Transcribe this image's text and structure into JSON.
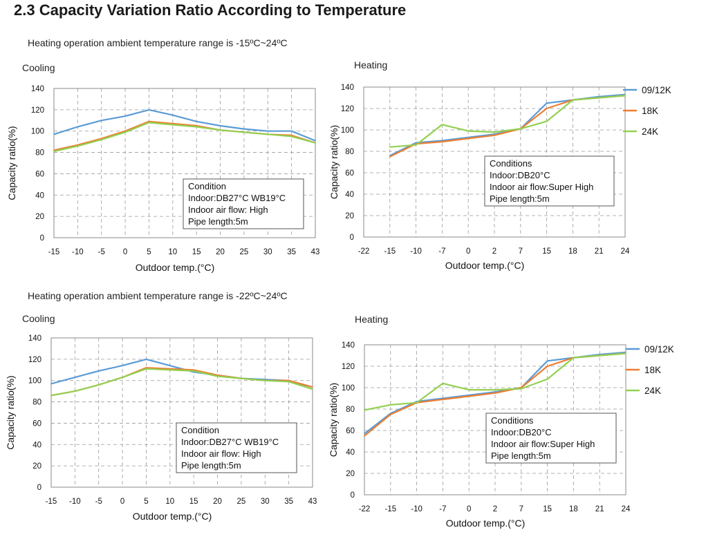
{
  "page": {
    "title": "2.3 Capacity Variation Ratio According to Temperature",
    "section1_range": "Heating operation ambient temperature range is -15ºC~24ºC",
    "section2_range": "Heating operation ambient temperature range is -22ºC~24ºC"
  },
  "colors": {
    "09/12K": "#5b9bd5",
    "18K": "#ed7d31",
    "24K": "#92d050"
  },
  "chart_data": [
    {
      "type": "line",
      "panel_label": "Cooling",
      "xlabel": "Outdoor temp.(°C)",
      "ylabel": "Capacity ratio(%)",
      "categories": [
        "-15",
        "-10",
        "-5",
        "0",
        "5",
        "10",
        "15",
        "20",
        "25",
        "30",
        "35",
        "43"
      ],
      "ylim": [
        0,
        140
      ],
      "yticks": [
        "0",
        "20",
        "40",
        "60",
        "80",
        "100",
        "120",
        "140"
      ],
      "grid": true,
      "series": [
        {
          "key": "09/12K",
          "values": [
            97,
            104,
            110,
            114,
            120,
            115,
            109,
            105,
            102,
            100,
            100,
            91
          ]
        },
        {
          "key": "18K",
          "values": [
            82,
            87,
            93,
            100,
            109,
            107,
            105,
            101,
            99,
            97,
            96,
            89
          ]
        },
        {
          "key": "24K",
          "values": [
            81,
            86,
            92,
            99,
            108,
            106,
            104,
            101,
            99,
            97,
            95,
            89
          ]
        }
      ],
      "conditions": [
        "Condition",
        "Indoor:DB27°C WB19°C",
        "Indoor air flow: High",
        "Pipe length:5m"
      ]
    },
    {
      "type": "line",
      "panel_label": "Heating",
      "xlabel": "Outdoor temp.(°C)",
      "ylabel": "Capacity ratio(%)",
      "categories": [
        "-22",
        "-15",
        "-10",
        "-7",
        "0",
        "2",
        "7",
        "15",
        "18",
        "21",
        "24"
      ],
      "ylim": [
        0,
        140
      ],
      "yticks": [
        "0",
        "20",
        "40",
        "60",
        "80",
        "100",
        "120",
        "140"
      ],
      "grid": true,
      "legend": [
        "09/12K",
        "18K",
        "24K"
      ],
      "series": [
        {
          "key": "09/12K",
          "values": [
            null,
            76,
            88,
            90,
            93,
            96,
            101,
            125,
            128,
            131,
            133
          ]
        },
        {
          "key": "18K",
          "values": [
            null,
            75,
            87,
            89,
            92,
            95,
            101,
            120,
            128,
            130,
            132
          ]
        },
        {
          "key": "24K",
          "values": [
            null,
            84,
            86,
            105,
            99,
            98,
            101,
            108,
            128,
            130,
            132
          ]
        }
      ],
      "conditions": [
        "Conditions",
        "Indoor:DB20°C",
        "Indoor air flow:Super High",
        "Pipe length:5m"
      ]
    },
    {
      "type": "line",
      "panel_label": "Cooling",
      "xlabel": "Outdoor temp.(°C)",
      "ylabel": "Capacity ratio(%)",
      "categories": [
        "-15",
        "-10",
        "-5",
        "0",
        "5",
        "10",
        "15",
        "20",
        "25",
        "30",
        "35",
        "43"
      ],
      "ylim": [
        0,
        140
      ],
      "yticks": [
        "0",
        "20",
        "40",
        "60",
        "80",
        "100",
        "120",
        "140"
      ],
      "grid": true,
      "series": [
        {
          "key": "09/12K",
          "values": [
            97,
            103,
            109,
            114,
            120,
            114,
            108,
            105,
            102,
            101,
            100,
            92
          ]
        },
        {
          "key": "18K",
          "values": [
            86,
            90,
            96,
            103,
            112,
            111,
            110,
            105,
            102,
            100,
            100,
            94
          ]
        },
        {
          "key": "24K",
          "values": [
            86,
            90,
            96,
            103,
            111,
            110,
            109,
            104,
            102,
            100,
            99,
            92
          ]
        }
      ],
      "conditions": [
        "Condition",
        "Indoor:DB27°C WB19°C",
        "Indoor air flow: High",
        "Pipe length:5m"
      ]
    },
    {
      "type": "line",
      "panel_label": "Heating",
      "xlabel": "Outdoor temp.(°C)",
      "ylabel": "Capacity ratio(%)",
      "categories": [
        "-22",
        "-15",
        "-10",
        "-7",
        "0",
        "2",
        "7",
        "15",
        "18",
        "21",
        "24"
      ],
      "ylim": [
        0,
        140
      ],
      "yticks": [
        "0",
        "20",
        "40",
        "60",
        "80",
        "100",
        "120",
        "140"
      ],
      "grid": true,
      "legend": [
        "09/12K",
        "18K",
        "24K"
      ],
      "series": [
        {
          "key": "09/12K",
          "values": [
            57,
            76,
            87,
            90,
            93,
            96,
            100,
            125,
            128,
            131,
            133
          ]
        },
        {
          "key": "18K",
          "values": [
            55,
            75,
            86,
            89,
            92,
            95,
            100,
            120,
            128,
            130,
            132
          ]
        },
        {
          "key": "24K",
          "values": [
            79,
            84,
            86,
            104,
            98,
            98,
            99,
            108,
            128,
            130,
            132
          ]
        }
      ],
      "conditions": [
        "Conditions",
        "Indoor:DB20°C",
        "Indoor air flow:Super High",
        "Pipe length:5m"
      ]
    }
  ]
}
